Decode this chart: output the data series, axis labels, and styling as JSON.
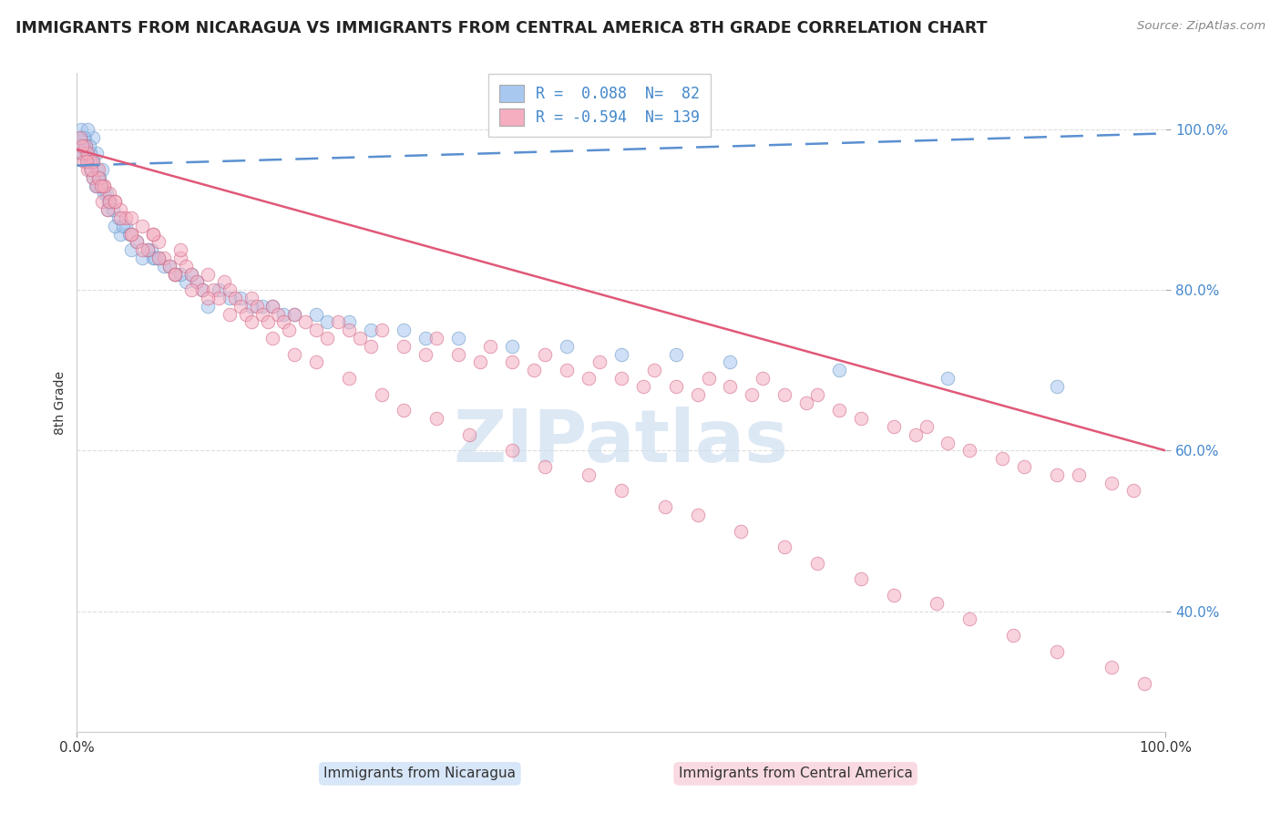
{
  "title": "IMMIGRANTS FROM NICARAGUA VS IMMIGRANTS FROM CENTRAL AMERICA 8TH GRADE CORRELATION CHART",
  "source": "Source: ZipAtlas.com",
  "ylabel": "8th Grade",
  "blue_label": "Immigrants from Nicaragua",
  "pink_label": "Immigrants from Central America",
  "blue_r": 0.088,
  "blue_n": 82,
  "pink_r": -0.594,
  "pink_n": 139,
  "blue_color": "#a8c8f0",
  "pink_color": "#f4aec0",
  "blue_edge_color": "#6090c0",
  "pink_edge_color": "#d06080",
  "blue_line_color": "#5a90d0",
  "pink_line_color": "#e05878",
  "title_color": "#222222",
  "source_color": "#888888",
  "axis_label_color": "#333333",
  "yaxis_tick_color": "#4488cc",
  "grid_color": "#dddddd",
  "watermark_color": "#ccddf0",
  "background_color": "#ffffff",
  "blue_trend_intercept": 95.5,
  "blue_trend_slope": 0.04,
  "pink_trend_intercept": 97.5,
  "pink_trend_slope": -0.375,
  "xmin": 0,
  "xmax": 100,
  "ymin": 25,
  "ymax": 107,
  "blue_x": [
    1.2,
    0.8,
    1.5,
    2.0,
    0.5,
    0.3,
    1.8,
    2.5,
    0.7,
    1.0,
    3.0,
    1.5,
    2.8,
    0.5,
    4.0,
    1.0,
    2.0,
    1.5,
    0.8,
    1.2,
    0.4,
    1.8,
    2.2,
    3.5,
    2.3,
    0.6,
    5.0,
    6.0,
    8.0,
    10.0,
    0.9,
    1.1,
    2.7,
    3.8,
    4.5,
    3.0,
    7.0,
    9.0,
    1.7,
    2.9,
    11.0,
    13.0,
    15.0,
    4.2,
    6.8,
    8.5,
    10.5,
    14.0,
    0.3,
    0.6,
    1.4,
    2.1,
    3.3,
    4.8,
    5.5,
    6.5,
    7.5,
    7.2,
    9.5,
    11.5,
    12.0,
    17.0,
    18.0,
    20.0,
    25.0,
    30.0,
    35.0,
    40.0,
    50.0,
    55.0,
    60.0,
    70.0,
    80.0,
    90.0,
    19.0,
    23.0,
    27.0,
    32.0,
    45.0,
    22.0,
    16.0,
    1.0
  ],
  "blue_y": [
    95.0,
    98.0,
    94.0,
    93.0,
    97.0,
    98.0,
    97.0,
    92.0,
    99.0,
    96.0,
    91.0,
    99.0,
    90.0,
    97.0,
    87.0,
    96.0,
    94.0,
    96.0,
    98.0,
    97.0,
    100.0,
    95.0,
    93.0,
    88.0,
    95.0,
    99.0,
    85.0,
    84.0,
    83.0,
    81.0,
    97.0,
    98.0,
    92.0,
    89.0,
    88.0,
    91.0,
    84.0,
    82.0,
    93.0,
    91.0,
    81.0,
    80.0,
    79.0,
    88.0,
    85.0,
    83.0,
    82.0,
    79.0,
    99.0,
    98.0,
    96.0,
    94.0,
    90.0,
    87.0,
    86.0,
    85.0,
    84.0,
    84.0,
    82.0,
    80.0,
    78.0,
    78.0,
    78.0,
    77.0,
    76.0,
    75.0,
    74.0,
    73.0,
    72.0,
    72.0,
    71.0,
    70.0,
    69.0,
    68.0,
    77.0,
    76.0,
    75.0,
    74.0,
    73.0,
    77.0,
    78.0,
    100.0
  ],
  "pink_x": [
    0.4,
    0.6,
    0.8,
    1.0,
    1.2,
    1.5,
    1.8,
    2.0,
    2.3,
    2.5,
    2.8,
    3.0,
    3.5,
    4.0,
    4.5,
    5.0,
    5.5,
    6.0,
    6.5,
    7.0,
    7.5,
    8.0,
    8.5,
    9.0,
    9.5,
    10.0,
    10.5,
    11.0,
    11.5,
    12.0,
    12.5,
    13.0,
    13.5,
    14.0,
    14.5,
    15.0,
    15.5,
    16.0,
    16.5,
    17.0,
    17.5,
    18.0,
    18.5,
    19.0,
    19.5,
    20.0,
    21.0,
    22.0,
    23.0,
    24.0,
    25.0,
    26.0,
    27.0,
    28.0,
    30.0,
    32.0,
    33.0,
    35.0,
    37.0,
    38.0,
    40.0,
    42.0,
    43.0,
    45.0,
    47.0,
    48.0,
    50.0,
    52.0,
    53.0,
    55.0,
    57.0,
    58.0,
    60.0,
    62.0,
    63.0,
    65.0,
    67.0,
    68.0,
    70.0,
    72.0,
    75.0,
    77.0,
    78.0,
    80.0,
    82.0,
    85.0,
    87.0,
    90.0,
    92.0,
    95.0,
    97.0,
    0.3,
    1.0,
    1.5,
    2.0,
    2.5,
    3.0,
    4.0,
    5.0,
    6.0,
    7.5,
    9.0,
    10.5,
    12.0,
    14.0,
    16.0,
    18.0,
    20.0,
    22.0,
    25.0,
    28.0,
    30.0,
    33.0,
    36.0,
    40.0,
    43.0,
    47.0,
    50.0,
    54.0,
    57.0,
    61.0,
    65.0,
    68.0,
    72.0,
    75.0,
    79.0,
    82.0,
    86.0,
    90.0,
    95.0,
    98.0,
    0.5,
    0.9,
    1.3,
    2.2,
    3.5,
    5.0,
    7.0,
    9.5
  ],
  "pink_y": [
    97.0,
    96.0,
    98.0,
    95.0,
    96.0,
    94.0,
    93.0,
    95.0,
    91.0,
    93.0,
    90.0,
    92.0,
    91.0,
    90.0,
    89.0,
    87.0,
    86.0,
    88.0,
    85.0,
    87.0,
    86.0,
    84.0,
    83.0,
    82.0,
    84.0,
    83.0,
    82.0,
    81.0,
    80.0,
    82.0,
    80.0,
    79.0,
    81.0,
    80.0,
    79.0,
    78.0,
    77.0,
    79.0,
    78.0,
    77.0,
    76.0,
    78.0,
    77.0,
    76.0,
    75.0,
    77.0,
    76.0,
    75.0,
    74.0,
    76.0,
    75.0,
    74.0,
    73.0,
    75.0,
    73.0,
    72.0,
    74.0,
    72.0,
    71.0,
    73.0,
    71.0,
    70.0,
    72.0,
    70.0,
    69.0,
    71.0,
    69.0,
    68.0,
    70.0,
    68.0,
    67.0,
    69.0,
    68.0,
    67.0,
    69.0,
    67.0,
    66.0,
    67.0,
    65.0,
    64.0,
    63.0,
    62.0,
    63.0,
    61.0,
    60.0,
    59.0,
    58.0,
    57.0,
    57.0,
    56.0,
    55.0,
    99.0,
    97.0,
    96.0,
    94.0,
    93.0,
    91.0,
    89.0,
    87.0,
    85.0,
    84.0,
    82.0,
    80.0,
    79.0,
    77.0,
    76.0,
    74.0,
    72.0,
    71.0,
    69.0,
    67.0,
    65.0,
    64.0,
    62.0,
    60.0,
    58.0,
    57.0,
    55.0,
    53.0,
    52.0,
    50.0,
    48.0,
    46.0,
    44.0,
    42.0,
    41.0,
    39.0,
    37.0,
    35.0,
    33.0,
    31.0,
    98.0,
    96.0,
    95.0,
    93.0,
    91.0,
    89.0,
    87.0,
    85.0
  ]
}
